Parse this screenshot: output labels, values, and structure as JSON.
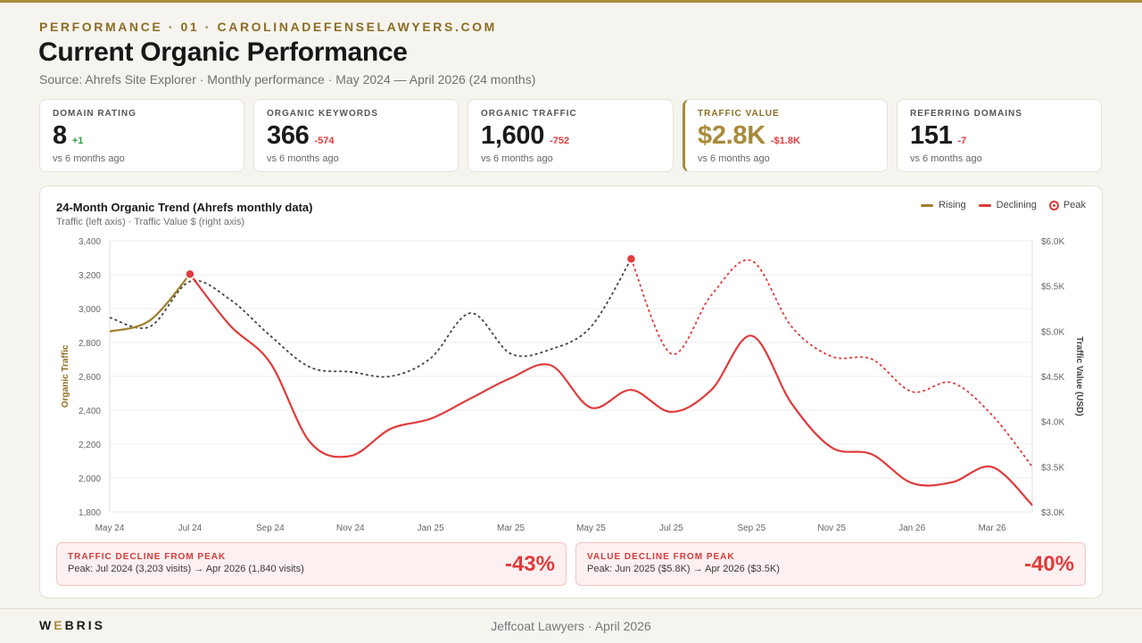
{
  "header": {
    "eyebrow": "PERFORMANCE · 01 · CAROLINADEFENSELAWYERS.COM",
    "title": "Current Organic Performance",
    "subtitle": "Source: Ahrefs Site Explorer · Monthly performance · May 2024 — April 2026 (24 months)"
  },
  "kpis": [
    {
      "label": "DOMAIN RATING",
      "value": "8",
      "delta": "+1",
      "sub": "vs 6 months ago"
    },
    {
      "label": "ORGANIC KEYWORDS",
      "value": "366",
      "delta": "-574",
      "sub": "vs 6 months ago"
    },
    {
      "label": "ORGANIC TRAFFIC",
      "value": "1,600",
      "delta": "-752",
      "sub": "vs 6 months ago"
    },
    {
      "label": "TRAFFIC VALUE",
      "value": "$2.8K",
      "delta": "-$1.8K",
      "sub": "vs 6 months ago"
    },
    {
      "label": "REFERRING DOMAINS",
      "value": "151",
      "delta": "-7",
      "sub": "vs 6 months ago"
    }
  ],
  "chart": {
    "title": "24-Month Organic Trend (Ahrefs monthly data)",
    "subtitle": "Traffic (left axis) · Traffic Value $ (right axis)",
    "legend": {
      "rising": "Rising",
      "declining": "Declining",
      "peak": "Peak"
    },
    "colors": {
      "rising": "#a0802e",
      "declining": "#e03b3b",
      "value_line": "#444444",
      "peak": "#e03b3b",
      "grid": "#ececec"
    }
  },
  "chart_data": {
    "type": "line",
    "x": [
      "May 24",
      "Jun 24",
      "Jul 24",
      "Aug 24",
      "Sep 24",
      "Oct 24",
      "Nov 24",
      "Dec 24",
      "Jan 25",
      "Feb 25",
      "Mar 25",
      "Apr 25",
      "May 25",
      "Jun 25",
      "Jul 25",
      "Aug 25",
      "Sep 25",
      "Oct 25",
      "Nov 25",
      "Dec 25",
      "Jan 26",
      "Feb 26",
      "Mar 26",
      "Apr 26"
    ],
    "x_tick_labels": [
      "May 24",
      "Jul 24",
      "Sep 24",
      "Nov 24",
      "Jan 25",
      "Mar 25",
      "May 25",
      "Jul 25",
      "Sep 25",
      "Nov 25",
      "Jan 26",
      "Mar 26"
    ],
    "ylabel_left": "Organic Traffic",
    "ylabel_right": "Traffic Value (USD)",
    "ylim_left": [
      1800,
      3400
    ],
    "ylim_right": [
      3000,
      6000
    ],
    "y_ticks_left": [
      "1,800",
      "2,000",
      "2,200",
      "2,400",
      "2,600",
      "2,800",
      "3,000",
      "3,200",
      "3,400"
    ],
    "y_ticks_right": [
      "$3.0K",
      "$3.5K",
      "$4.0K",
      "$4.5K",
      "$5.0K",
      "$5.5K",
      "$6.0K"
    ],
    "grid": true,
    "legend_position": "top-right",
    "series": [
      {
        "name": "Organic Traffic",
        "axis": "left",
        "values": [
          2865,
          2930,
          3203,
          2900,
          2680,
          2210,
          2130,
          2290,
          2350,
          2470,
          2590,
          2665,
          2415,
          2520,
          2390,
          2520,
          2840,
          2440,
          2180,
          2140,
          1970,
          1975,
          2065,
          1840
        ]
      },
      {
        "name": "Traffic Value (USD)",
        "axis": "right",
        "values": [
          5150,
          5050,
          5550,
          5350,
          4950,
          4600,
          4550,
          4500,
          4700,
          5200,
          4750,
          4800,
          5050,
          5800,
          4750,
          5400,
          5780,
          5050,
          4720,
          4690,
          4330,
          4430,
          4070,
          3500
        ]
      }
    ],
    "peaks": [
      {
        "series": "Organic Traffic",
        "x": "Jul 24",
        "value": 3203
      },
      {
        "series": "Traffic Value (USD)",
        "x": "Jun 25",
        "value": 5800
      }
    ]
  },
  "declines": [
    {
      "label": "TRAFFIC DECLINE FROM PEAK",
      "sub": "Peak: Jul 2024 (3,203 visits) → Apr 2026 (1,840 visits)",
      "pct": "-43%"
    },
    {
      "label": "VALUE DECLINE FROM PEAK",
      "sub": "Peak: Jun 2025 ($5.8K) → Apr 2026 ($3.5K)",
      "pct": "-40%"
    }
  ],
  "footer": {
    "brand_pre": "W",
    "brand_accent": "E",
    "brand_post": "BRIS",
    "text": "Jeffcoat Lawyers · April 2026"
  }
}
